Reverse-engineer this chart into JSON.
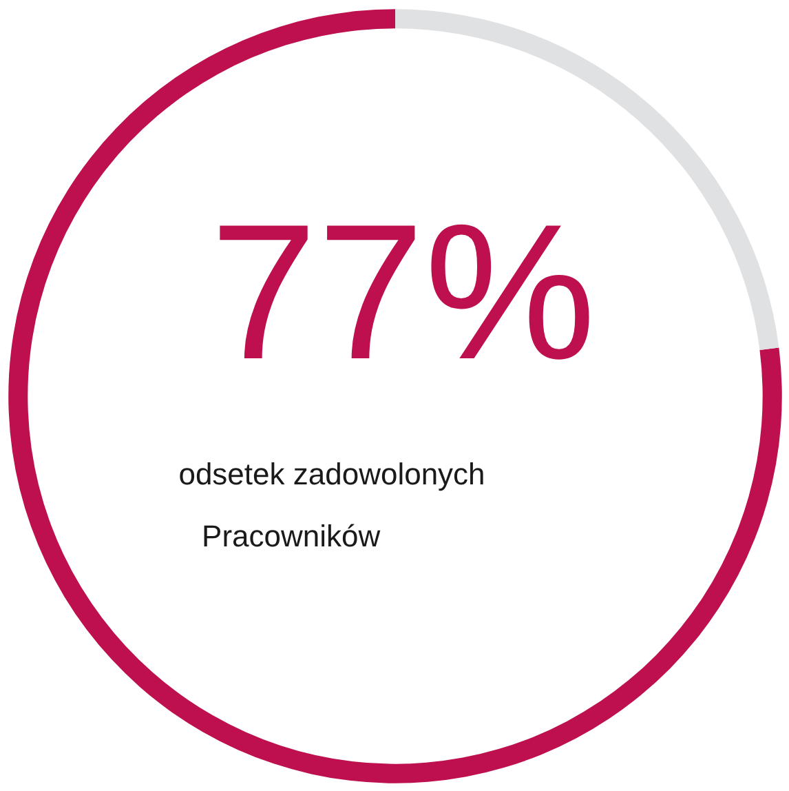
{
  "chart_data": {
    "type": "donut",
    "categories": [
      null,
      null
    ],
    "values": [
      77,
      23
    ],
    "colors": [
      "#be0f4e",
      "#e0e1e3"
    ],
    "value_labels": [
      "77%",
      null
    ],
    "annotations": [
      "odsetek zadowolonych",
      "Pracowników"
    ]
  }
}
